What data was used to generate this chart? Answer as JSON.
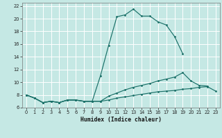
{
  "background_color": "#c5e8e4",
  "grid_color": "#ffffff",
  "line_color": "#1a7068",
  "xlabel": "Humidex (Indice chaleur)",
  "xlim": [
    -0.5,
    23.5
  ],
  "ylim": [
    6,
    22.5
  ],
  "xticks": [
    0,
    1,
    2,
    3,
    4,
    5,
    6,
    7,
    8,
    9,
    10,
    11,
    12,
    13,
    14,
    15,
    16,
    17,
    18,
    19,
    20,
    21,
    22,
    23
  ],
  "yticks": [
    6,
    8,
    10,
    12,
    14,
    16,
    18,
    20,
    22
  ],
  "series1_x": [
    0,
    1,
    2,
    3,
    4,
    5,
    6,
    7,
    8,
    9,
    10,
    11,
    12,
    13,
    14,
    15,
    16,
    17,
    18,
    19
  ],
  "series1_y": [
    8.0,
    7.5,
    6.8,
    7.0,
    6.8,
    7.2,
    7.2,
    7.0,
    7.0,
    11.0,
    15.8,
    20.3,
    20.6,
    21.5,
    20.4,
    20.4,
    19.5,
    19.0,
    17.2,
    14.5
  ],
  "series2_x": [
    0,
    1,
    2,
    3,
    4,
    5,
    6,
    7,
    8,
    9,
    10,
    11,
    12,
    13,
    14,
    15,
    16,
    17,
    18,
    19,
    20,
    21,
    22
  ],
  "series2_y": [
    8.0,
    7.5,
    6.8,
    7.0,
    6.8,
    7.2,
    7.2,
    7.0,
    7.0,
    7.0,
    7.8,
    8.3,
    8.8,
    9.2,
    9.5,
    9.8,
    10.2,
    10.5,
    10.8,
    11.5,
    10.2,
    9.5,
    9.4
  ],
  "series3_x": [
    0,
    1,
    2,
    3,
    4,
    5,
    6,
    7,
    8,
    9,
    10,
    11,
    12,
    13,
    14,
    15,
    16,
    17,
    18,
    19,
    20,
    21,
    22,
    23
  ],
  "series3_y": [
    8.0,
    7.5,
    6.8,
    7.0,
    6.8,
    7.2,
    7.2,
    7.0,
    7.0,
    7.0,
    7.2,
    7.5,
    7.7,
    7.9,
    8.1,
    8.3,
    8.5,
    8.6,
    8.7,
    8.9,
    9.0,
    9.2,
    9.3,
    8.6
  ]
}
